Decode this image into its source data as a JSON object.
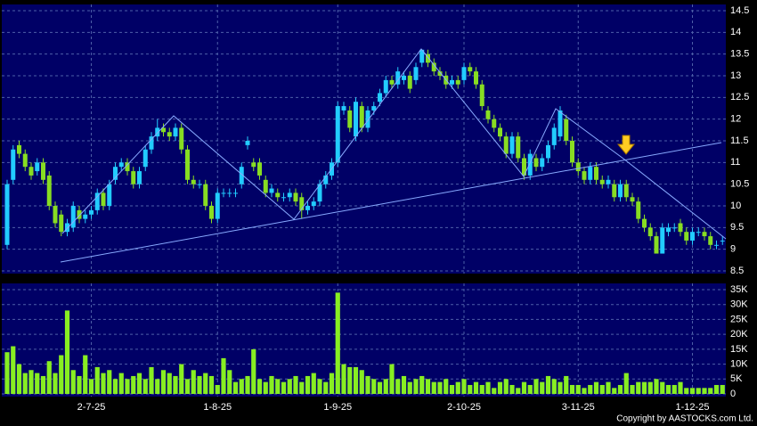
{
  "chart_data": {
    "type": "candlestick",
    "categories": [
      null,
      null,
      null,
      null,
      null,
      null,
      null,
      null,
      null,
      null,
      null,
      null,
      null,
      null,
      "2-7-25",
      null,
      null,
      null,
      null,
      null,
      null,
      null,
      null,
      null,
      null,
      null,
      null,
      null,
      null,
      null,
      null,
      null,
      null,
      null,
      null,
      "1-8-25",
      null,
      null,
      null,
      null,
      null,
      null,
      null,
      null,
      null,
      null,
      null,
      null,
      null,
      null,
      null,
      null,
      null,
      null,
      null,
      "1-9-25",
      null,
      null,
      null,
      null,
      null,
      null,
      null,
      null,
      null,
      null,
      null,
      null,
      null,
      null,
      null,
      null,
      null,
      null,
      null,
      null,
      "2-10-25",
      null,
      null,
      null,
      null,
      null,
      null,
      null,
      null,
      null,
      null,
      null,
      null,
      null,
      null,
      null,
      null,
      null,
      null,
      "3-11-25",
      null,
      null,
      null,
      null,
      null,
      null,
      null,
      null,
      null,
      null,
      null,
      null,
      null,
      null,
      null,
      null,
      null,
      null,
      "1-12-25",
      null,
      null,
      null,
      null,
      null
    ],
    "open": [
      9.1,
      10.6,
      11.4,
      11.2,
      10.9,
      10.8,
      11.0,
      10.7,
      10.0,
      9.8,
      9.4,
      9.5,
      9.9,
      9.7,
      9.8,
      9.9,
      10.3,
      10.0,
      10.6,
      10.9,
      11.0,
      10.8,
      10.5,
      10.9,
      11.3,
      11.6,
      11.8,
      11.7,
      11.6,
      11.8,
      11.3,
      10.6,
      10.5,
      10.5,
      10.0,
      9.7,
      10.3,
      10.3,
      10.3,
      10.5,
      11.4,
      11.0,
      11.0,
      10.6,
      10.3,
      10.3,
      10.2,
      10.2,
      10.3,
      10.2,
      9.9,
      10.0,
      10.1,
      10.5,
      10.7,
      11.0,
      12.2,
      12.2,
      11.6,
      12.3,
      11.8,
      12.2,
      12.4,
      12.6,
      12.9,
      12.8,
      12.9,
      13.0,
      12.9,
      13.3,
      13.5,
      13.3,
      13.1,
      13.0,
      12.8,
      12.9,
      12.9,
      13.2,
      13.1,
      12.8,
      12.2,
      12.0,
      11.8,
      11.6,
      11.2,
      11.6,
      11.1,
      10.7,
      11.1,
      10.9,
      11.1,
      11.4,
      11.6,
      12.0,
      11.5,
      11.0,
      10.8,
      10.6,
      10.9,
      10.6,
      10.5,
      10.5,
      10.2,
      10.5,
      10.2,
      10.1,
      9.7,
      9.5,
      9.3,
      8.9,
      9.4,
      9.5,
      9.6,
      9.4,
      9.2,
      9.4,
      9.4,
      9.3,
      9.1,
      9.2
    ],
    "high": [
      10.6,
      11.4,
      11.5,
      11.3,
      11.0,
      11.1,
      11.1,
      10.8,
      10.1,
      9.9,
      9.7,
      10.1,
      10.0,
      9.9,
      10.0,
      10.4,
      10.4,
      10.6,
      11.0,
      11.1,
      11.1,
      10.9,
      10.9,
      11.4,
      11.7,
      12.0,
      11.9,
      11.8,
      11.9,
      11.9,
      11.4,
      10.7,
      10.6,
      10.6,
      10.1,
      10.4,
      10.4,
      10.4,
      10.4,
      11.0,
      11.6,
      11.1,
      11.1,
      10.7,
      10.5,
      10.4,
      10.3,
      10.4,
      10.4,
      10.3,
      10.1,
      10.2,
      10.6,
      10.8,
      11.1,
      12.4,
      12.4,
      12.3,
      12.5,
      12.4,
      12.3,
      12.4,
      12.7,
      13.0,
      13.0,
      13.2,
      13.1,
      13.1,
      13.3,
      13.6,
      13.6,
      13.4,
      13.2,
      13.1,
      13.0,
      13.0,
      13.3,
      13.3,
      13.2,
      12.9,
      12.3,
      12.1,
      11.9,
      11.7,
      11.7,
      11.7,
      11.2,
      11.3,
      11.2,
      11.2,
      11.5,
      11.9,
      12.3,
      12.1,
      11.6,
      11.1,
      10.9,
      11.0,
      11.0,
      10.7,
      10.7,
      10.6,
      10.6,
      10.6,
      10.3,
      10.2,
      9.8,
      9.6,
      9.4,
      9.6,
      9.6,
      9.6,
      9.7,
      9.5,
      9.5,
      9.5,
      9.5,
      9.4,
      9.2,
      9.3
    ],
    "low": [
      9.0,
      10.5,
      11.1,
      10.8,
      10.6,
      10.7,
      10.5,
      9.9,
      9.5,
      9.3,
      9.3,
      9.4,
      9.6,
      9.6,
      9.7,
      9.8,
      9.9,
      9.9,
      10.5,
      10.8,
      10.7,
      10.4,
      10.4,
      10.8,
      11.2,
      11.5,
      11.6,
      11.5,
      11.5,
      11.2,
      10.5,
      10.4,
      10.4,
      9.9,
      9.6,
      9.6,
      10.2,
      10.2,
      10.2,
      10.4,
      11.3,
      10.8,
      10.6,
      10.2,
      10.2,
      10.1,
      10.1,
      10.1,
      10.0,
      9.7,
      9.8,
      9.9,
      10.0,
      10.4,
      10.6,
      10.9,
      12.1,
      11.7,
      11.5,
      11.7,
      11.7,
      12.1,
      12.3,
      12.5,
      12.7,
      12.7,
      12.8,
      12.6,
      12.8,
      13.2,
      13.2,
      13.0,
      12.9,
      12.7,
      12.7,
      12.7,
      12.8,
      13.0,
      12.7,
      12.2,
      11.9,
      11.7,
      11.5,
      11.1,
      11.1,
      11.0,
      10.6,
      10.6,
      10.8,
      10.8,
      11.0,
      11.3,
      11.5,
      11.4,
      10.9,
      10.7,
      10.5,
      10.5,
      10.5,
      10.4,
      10.4,
      10.1,
      10.1,
      10.1,
      10.0,
      9.6,
      9.4,
      9.2,
      8.9,
      8.9,
      9.3,
      9.4,
      9.3,
      9.1,
      9.1,
      9.3,
      9.2,
      9.0,
      9.0,
      9.1
    ],
    "close": [
      10.5,
      11.3,
      11.2,
      10.9,
      10.7,
      11.0,
      10.6,
      10.0,
      9.6,
      9.4,
      9.6,
      10.0,
      9.7,
      9.8,
      9.9,
      10.3,
      10.0,
      10.5,
      10.9,
      11.0,
      10.8,
      10.5,
      10.8,
      11.3,
      11.6,
      11.8,
      11.7,
      11.6,
      11.8,
      11.3,
      10.6,
      10.5,
      10.5,
      10.0,
      9.7,
      10.3,
      10.3,
      10.3,
      10.3,
      10.9,
      11.5,
      10.9,
      10.7,
      10.3,
      10.4,
      10.2,
      10.2,
      10.3,
      10.1,
      9.9,
      10.0,
      10.1,
      10.5,
      10.7,
      11.0,
      12.3,
      12.3,
      11.8,
      12.4,
      11.8,
      12.2,
      12.3,
      12.6,
      12.9,
      12.8,
      13.1,
      13.0,
      12.7,
      13.2,
      13.6,
      13.3,
      13.1,
      13.0,
      12.8,
      12.9,
      12.8,
      13.2,
      13.1,
      12.8,
      12.3,
      12.0,
      11.8,
      11.6,
      11.2,
      11.6,
      11.1,
      10.7,
      11.2,
      10.9,
      11.1,
      11.4,
      11.8,
      12.2,
      11.5,
      11.0,
      10.8,
      10.6,
      10.9,
      10.6,
      10.5,
      10.6,
      10.2,
      10.5,
      10.2,
      10.1,
      9.7,
      9.5,
      9.3,
      8.9,
      9.5,
      9.5,
      9.5,
      9.4,
      9.2,
      9.4,
      9.4,
      9.3,
      9.1,
      9.1,
      9.2
    ],
    "volume": [
      14000,
      16000,
      10000,
      7000,
      8000,
      7000,
      6000,
      11000,
      7000,
      13000,
      28000,
      8000,
      6000,
      13000,
      5000,
      9000,
      7000,
      8000,
      5000,
      7000,
      5000,
      6000,
      7000,
      5000,
      9000,
      5000,
      8000,
      7000,
      6000,
      10000,
      5000,
      8000,
      6000,
      7000,
      6000,
      3000,
      12000,
      8000,
      4000,
      5000,
      6000,
      15000,
      5000,
      4000,
      6000,
      5000,
      4000,
      5000,
      6000,
      4000,
      6000,
      7000,
      5000,
      4000,
      7000,
      34000,
      10000,
      9000,
      9000,
      8000,
      6000,
      5000,
      4000,
      5000,
      10000,
      5000,
      6000,
      4000,
      5000,
      6000,
      5000,
      4000,
      4000,
      5000,
      3000,
      4000,
      5000,
      3000,
      4000,
      3000,
      4000,
      2000,
      4000,
      5000,
      3000,
      2000,
      4000,
      3000,
      5000,
      4000,
      6000,
      5000,
      4000,
      6000,
      3000,
      3000,
      2000,
      3000,
      4000,
      3000,
      4000,
      2000,
      3000,
      7000,
      3000,
      4000,
      4000,
      4000,
      5000,
      4000,
      3000,
      3000,
      4000,
      2000,
      2000,
      2000,
      2000,
      2000,
      3000,
      3000
    ],
    "up_color": "#22ccff",
    "down_color": "#88dd22",
    "volume_color": "#88ee22",
    "ylim": [
      8.5,
      14.5
    ],
    "yticks": [
      8.5,
      9,
      9.5,
      10,
      10.5,
      11,
      11.5,
      12,
      12.5,
      13,
      13.5,
      14,
      14.5
    ],
    "y2lim": [
      0,
      35000
    ],
    "y2ticks": [
      {
        "value": 0,
        "label": "0"
      },
      {
        "value": 5000,
        "label": "5K"
      },
      {
        "value": 10000,
        "label": "10K"
      },
      {
        "value": 15000,
        "label": "15K"
      },
      {
        "value": 20000,
        "label": "20K"
      },
      {
        "value": 25000,
        "label": "25K"
      },
      {
        "value": 30000,
        "label": "30K"
      },
      {
        "value": 35000,
        "label": "35K"
      }
    ],
    "grid": true,
    "copyright": "Copyright by AASTOCKS.com Ltd."
  }
}
